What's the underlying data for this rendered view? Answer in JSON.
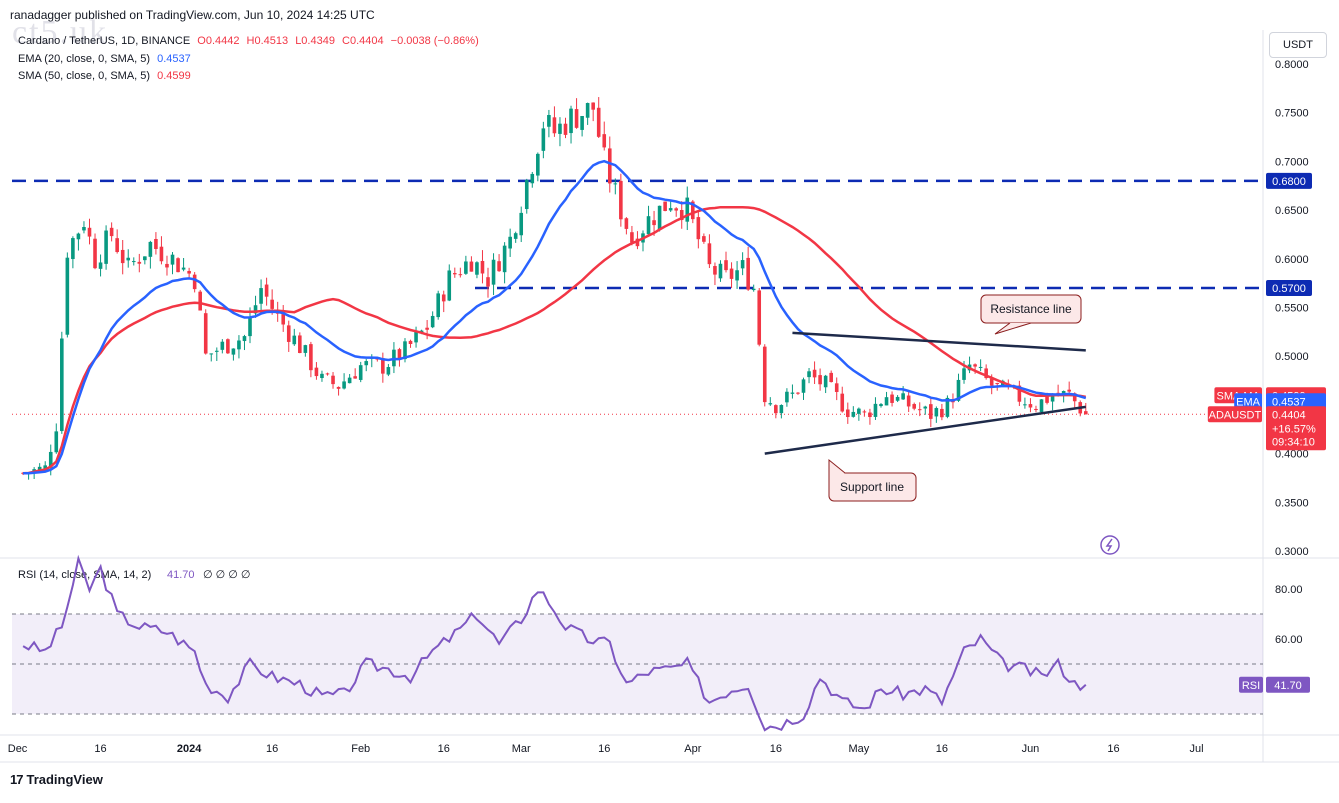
{
  "header": {
    "published": "ranadagger published on TradingView.com, Jun 10, 2024 14:25 UTC",
    "watermark": "ct5.uk",
    "symbol": "Cardano / TetherUS, 1D, BINANCE",
    "open": "O0.4442",
    "high": "H0.4513",
    "low": "L0.4349",
    "close": "C0.4404",
    "change": "−0.0038 (−0.86%)",
    "ema_label": "EMA (20, close, 0, SMA, 5)",
    "ema_value": "0.4537",
    "sma_label": "SMA (50, close, 0, SMA, 5)",
    "sma_value": "0.4599",
    "currency_button": "USDT"
  },
  "footer": {
    "logo_text": "TradingView",
    "logo_mark": "17"
  },
  "colors": {
    "up": "#089981",
    "down": "#f23645",
    "ema": "#2962ff",
    "sma": "#f23645",
    "levels": "#0d2bb3",
    "rsi": "#7e57c2",
    "trend": "#1e2a4a"
  },
  "chart_data": [
    {
      "type": "candlestick",
      "ylim": [
        0.3,
        0.81
      ],
      "y_ticks": [
        "0.8000",
        "0.7500",
        "0.7000",
        "0.6500",
        "0.6000",
        "0.5500",
        "0.5000",
        "0.4500",
        "0.4000",
        "0.3500",
        "0.3000"
      ],
      "y_tick_values": [
        0.8,
        0.75,
        0.7,
        0.65,
        0.6,
        0.55,
        0.5,
        0.45,
        0.4,
        0.35,
        0.3
      ],
      "x_ticks": [
        "Dec",
        "16",
        "2024",
        "16",
        "Feb",
        "16",
        "Mar",
        "16",
        "Apr",
        "16",
        "May",
        "16",
        "Jun",
        "16",
        "Jul"
      ],
      "x_tick_days": [
        0,
        15,
        31,
        46,
        62,
        77,
        91,
        106,
        122,
        137,
        152,
        167,
        183,
        198,
        213
      ],
      "x_range_days": [
        -1,
        221
      ],
      "horizontal_levels": [
        0.68,
        0.57
      ],
      "level_labels": [
        "0.6800",
        "0.5700"
      ],
      "resistance_line": {
        "from": [
          "2024-04-18",
          0.524
        ],
        "to": [
          "2024-06-10",
          0.506
        ],
        "label": "Resistance line"
      },
      "support_line": {
        "from": [
          "2024-04-13",
          0.4
        ],
        "to": [
          "2024-06-10",
          0.448
        ],
        "label": "Support line"
      },
      "price_tags": [
        {
          "label": "SMA:MA",
          "value": "0.4599"
        },
        {
          "label": "EMA",
          "value": "0.4537"
        },
        {
          "label": "ADAUSDT",
          "value": "0.4404",
          "extra": [
            "+16.57%",
            "09:34:10"
          ]
        }
      ],
      "anchors": [
        [
          "2023-12-01",
          0.38
        ],
        [
          "2023-12-05",
          0.385
        ],
        [
          "2023-12-07",
          0.43
        ],
        [
          "2023-12-09",
          0.61
        ],
        [
          "2023-12-12",
          0.64
        ],
        [
          "2023-12-14",
          0.6
        ],
        [
          "2023-12-17",
          0.625
        ],
        [
          "2023-12-20",
          0.59
        ],
        [
          "2023-12-24",
          0.615
        ],
        [
          "2023-12-28",
          0.6
        ],
        [
          "2024-01-01",
          0.58
        ],
        [
          "2024-01-03",
          0.5
        ],
        [
          "2024-01-06",
          0.51
        ],
        [
          "2024-01-10",
          0.52
        ],
        [
          "2024-01-13",
          0.57
        ],
        [
          "2024-01-16",
          0.54
        ],
        [
          "2024-01-20",
          0.51
        ],
        [
          "2024-01-24",
          0.475
        ],
        [
          "2024-01-27",
          0.47
        ],
        [
          "2024-01-31",
          0.49
        ],
        [
          "2024-02-04",
          0.49
        ],
        [
          "2024-02-08",
          0.505
        ],
        [
          "2024-02-12",
          0.53
        ],
        [
          "2024-02-16",
          0.58
        ],
        [
          "2024-02-20",
          0.6
        ],
        [
          "2024-02-23",
          0.58
        ],
        [
          "2024-02-27",
          0.62
        ],
        [
          "2024-03-01",
          0.68
        ],
        [
          "2024-03-04",
          0.74
        ],
        [
          "2024-03-06",
          0.73
        ],
        [
          "2024-03-09",
          0.745
        ],
        [
          "2024-03-13",
          0.755
        ],
        [
          "2024-03-15",
          0.7
        ],
        [
          "2024-03-18",
          0.65
        ],
        [
          "2024-03-20",
          0.62
        ],
        [
          "2024-03-23",
          0.64
        ],
        [
          "2024-03-27",
          0.66
        ],
        [
          "2024-03-30",
          0.65
        ],
        [
          "2024-04-03",
          0.59
        ],
        [
          "2024-04-06",
          0.58
        ],
        [
          "2024-04-09",
          0.59
        ],
        [
          "2024-04-11",
          0.57
        ],
        [
          "2024-04-13",
          0.46
        ],
        [
          "2024-04-15",
          0.45
        ],
        [
          "2024-04-18",
          0.46
        ],
        [
          "2024-04-21",
          0.48
        ],
        [
          "2024-04-24",
          0.47
        ],
        [
          "2024-04-28",
          0.445
        ],
        [
          "2024-05-01",
          0.44
        ],
        [
          "2024-05-05",
          0.46
        ],
        [
          "2024-05-09",
          0.45
        ],
        [
          "2024-05-13",
          0.44
        ],
        [
          "2024-05-16",
          0.45
        ],
        [
          "2024-05-20",
          0.49
        ],
        [
          "2024-05-24",
          0.47
        ],
        [
          "2024-05-28",
          0.46
        ],
        [
          "2024-06-01",
          0.45
        ],
        [
          "2024-06-04",
          0.46
        ],
        [
          "2024-06-07",
          0.46
        ],
        [
          "2024-06-10",
          0.44
        ]
      ]
    },
    {
      "type": "line",
      "title": "RSI (14, close, SMA, 14, 2)",
      "value_label": "41.70",
      "placeholders": "∅ ∅ ∅ ∅",
      "ylim": [
        18,
        92
      ],
      "y_ticks": [
        "80.00",
        "60.00"
      ],
      "y_tick_values": [
        80,
        60
      ],
      "band": [
        30,
        70
      ],
      "midline": 50,
      "tag": {
        "label": "RSI",
        "value": "41.70"
      },
      "anchors": [
        [
          "2023-12-01",
          58
        ],
        [
          "2023-12-05",
          55
        ],
        [
          "2023-12-08",
          65
        ],
        [
          "2023-12-11",
          90
        ],
        [
          "2023-12-13",
          80
        ],
        [
          "2023-12-15",
          88
        ],
        [
          "2023-12-18",
          70
        ],
        [
          "2023-12-22",
          65
        ],
        [
          "2023-12-27",
          63
        ],
        [
          "2024-01-01",
          55
        ],
        [
          "2024-01-03",
          42
        ],
        [
          "2024-01-07",
          37
        ],
        [
          "2024-01-11",
          50
        ],
        [
          "2024-01-15",
          45
        ],
        [
          "2024-01-20",
          42
        ],
        [
          "2024-01-24",
          37
        ],
        [
          "2024-01-28",
          38
        ],
        [
          "2024-02-01",
          50
        ],
        [
          "2024-02-05",
          48
        ],
        [
          "2024-02-09",
          45
        ],
        [
          "2024-02-13",
          55
        ],
        [
          "2024-02-17",
          62
        ],
        [
          "2024-02-21",
          70
        ],
        [
          "2024-02-25",
          58
        ],
        [
          "2024-02-29",
          68
        ],
        [
          "2024-03-03",
          80
        ],
        [
          "2024-03-05",
          75
        ],
        [
          "2024-03-08",
          65
        ],
        [
          "2024-03-12",
          60
        ],
        [
          "2024-03-16",
          58
        ],
        [
          "2024-03-19",
          42
        ],
        [
          "2024-03-23",
          47
        ],
        [
          "2024-03-27",
          48
        ],
        [
          "2024-03-30",
          50
        ],
        [
          "2024-04-03",
          35
        ],
        [
          "2024-04-07",
          40
        ],
        [
          "2024-04-10",
          42
        ],
        [
          "2024-04-13",
          25
        ],
        [
          "2024-04-16",
          26
        ],
        [
          "2024-04-20",
          30
        ],
        [
          "2024-04-23",
          45
        ],
        [
          "2024-04-27",
          35
        ],
        [
          "2024-05-01",
          32
        ],
        [
          "2024-05-04",
          40
        ],
        [
          "2024-05-08",
          38
        ],
        [
          "2024-05-12",
          40
        ],
        [
          "2024-05-15",
          35
        ],
        [
          "2024-05-19",
          55
        ],
        [
          "2024-05-22",
          60
        ],
        [
          "2024-05-26",
          50
        ],
        [
          "2024-05-30",
          48
        ],
        [
          "2024-06-02",
          45
        ],
        [
          "2024-06-05",
          50
        ],
        [
          "2024-06-08",
          42
        ],
        [
          "2024-06-10",
          41.7
        ]
      ]
    }
  ]
}
